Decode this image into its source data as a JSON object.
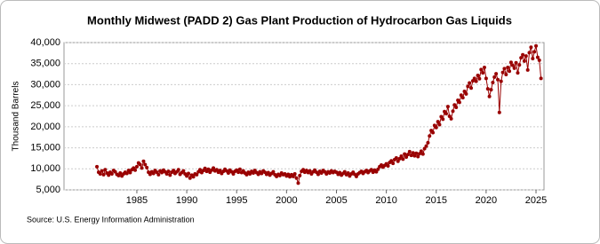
{
  "chart_data": {
    "type": "line",
    "title": "Monthly Midwest (PADD 2) Gas Plant Production of Hydrocarbon Gas Liquids",
    "y_label": "Thousand Barrels",
    "source": "Source: U.S. Energy Information Administration",
    "xlim": [
      1977.7,
      2025.8
    ],
    "ylim": [
      5000,
      40000
    ],
    "xticks": [
      1985,
      1990,
      1995,
      2000,
      2005,
      2010,
      2015,
      2020,
      2025
    ],
    "yticks": [
      {
        "value": 5000,
        "label": "5,000"
      },
      {
        "value": 10000,
        "label": "10,000"
      },
      {
        "value": 15000,
        "label": "15,000"
      },
      {
        "value": 20000,
        "label": "20,000"
      },
      {
        "value": 25000,
        "label": "25,000"
      },
      {
        "value": 30000,
        "label": "30,000"
      },
      {
        "value": 35000,
        "label": "35,000"
      },
      {
        "value": 40000,
        "label": "40,000"
      }
    ],
    "grid": true,
    "x": [
      1981,
      1981.17,
      1981.33,
      1981.5,
      1981.67,
      1981.83,
      1982,
      1982.17,
      1982.33,
      1982.5,
      1982.67,
      1982.83,
      1983,
      1983.17,
      1983.33,
      1983.5,
      1983.67,
      1983.83,
      1984,
      1984.17,
      1984.33,
      1984.5,
      1984.67,
      1984.83,
      1985,
      1985.17,
      1985.33,
      1985.5,
      1985.67,
      1985.83,
      1986,
      1986.17,
      1986.33,
      1986.5,
      1986.67,
      1986.83,
      1987,
      1987.17,
      1987.33,
      1987.5,
      1987.67,
      1987.83,
      1988,
      1988.17,
      1988.33,
      1988.5,
      1988.67,
      1988.83,
      1989,
      1989.17,
      1989.33,
      1989.5,
      1989.67,
      1989.83,
      1990,
      1990.17,
      1990.33,
      1990.5,
      1990.67,
      1990.83,
      1991,
      1991.17,
      1991.33,
      1991.5,
      1991.67,
      1991.83,
      1992,
      1992.17,
      1992.33,
      1992.5,
      1992.67,
      1992.83,
      1993,
      1993.17,
      1993.33,
      1993.5,
      1993.67,
      1993.83,
      1994,
      1994.17,
      1994.33,
      1994.5,
      1994.67,
      1994.83,
      1995,
      1995.17,
      1995.33,
      1995.5,
      1995.67,
      1995.83,
      1996,
      1996.17,
      1996.33,
      1996.5,
      1996.67,
      1996.83,
      1997,
      1997.17,
      1997.33,
      1997.5,
      1997.67,
      1997.83,
      1998,
      1998.17,
      1998.33,
      1998.5,
      1998.67,
      1998.83,
      1999,
      1999.17,
      1999.33,
      1999.5,
      1999.67,
      1999.83,
      2000,
      2000.17,
      2000.33,
      2000.5,
      2000.67,
      2000.83,
      2001,
      2001.17,
      2001.33,
      2001.5,
      2001.67,
      2001.83,
      2002,
      2002.17,
      2002.33,
      2002.5,
      2002.67,
      2002.83,
      2003,
      2003.17,
      2003.33,
      2003.5,
      2003.67,
      2003.83,
      2004,
      2004.17,
      2004.33,
      2004.5,
      2004.67,
      2004.83,
      2005,
      2005.17,
      2005.33,
      2005.5,
      2005.67,
      2005.83,
      2006,
      2006.17,
      2006.33,
      2006.5,
      2006.67,
      2006.83,
      2007,
      2007.17,
      2007.33,
      2007.5,
      2007.67,
      2007.83,
      2008,
      2008.17,
      2008.33,
      2008.5,
      2008.67,
      2008.83,
      2009,
      2009.17,
      2009.33,
      2009.5,
      2009.67,
      2009.83,
      2010,
      2010.17,
      2010.33,
      2010.5,
      2010.67,
      2010.83,
      2011,
      2011.17,
      2011.33,
      2011.5,
      2011.67,
      2011.83,
      2012,
      2012.17,
      2012.33,
      2012.5,
      2012.67,
      2012.83,
      2013,
      2013.17,
      2013.33,
      2013.5,
      2013.67,
      2013.83,
      2014,
      2014.17,
      2014.33,
      2014.5,
      2014.67,
      2014.83,
      2015,
      2015.17,
      2015.33,
      2015.5,
      2015.67,
      2015.83,
      2016,
      2016.17,
      2016.33,
      2016.5,
      2016.67,
      2016.83,
      2017,
      2017.17,
      2017.33,
      2017.5,
      2017.67,
      2017.83,
      2018,
      2018.17,
      2018.33,
      2018.5,
      2018.67,
      2018.83,
      2019,
      2019.17,
      2019.33,
      2019.5,
      2019.67,
      2019.83,
      2020,
      2020.17,
      2020.33,
      2020.5,
      2020.67,
      2020.83,
      2021,
      2021.17,
      2021.33,
      2021.5,
      2021.67,
      2021.83,
      2022,
      2022.17,
      2022.33,
      2022.5,
      2022.67,
      2022.83,
      2023,
      2023.17,
      2023.33,
      2023.5,
      2023.67,
      2023.83,
      2024,
      2024.17,
      2024.33,
      2024.5,
      2024.67,
      2024.83,
      2025,
      2025.17,
      2025.33,
      2025.5
    ],
    "series": [
      {
        "color": "#990000",
        "values": [
          10500,
          9200,
          8800,
          9500,
          8600,
          9800,
          9000,
          8500,
          9200,
          8800,
          9600,
          9300,
          8700,
          8400,
          9000,
          8300,
          8800,
          9200,
          8900,
          9600,
          9100,
          9800,
          10200,
          9700,
          10500,
          11400,
          11000,
          10200,
          11800,
          11000,
          10300,
          9200,
          8700,
          9300,
          8900,
          9600,
          9200,
          8600,
          9500,
          9100,
          9700,
          9300,
          8800,
          9400,
          8500,
          9200,
          9600,
          8900,
          9300,
          9800,
          8700,
          9100,
          9500,
          8800,
          8300,
          8900,
          7800,
          8500,
          8100,
          8800,
          8600,
          9300,
          9800,
          9100,
          9600,
          10100,
          9400,
          9900,
          9200,
          9700,
          10200,
          9500,
          9800,
          9200,
          9600,
          8900,
          9400,
          9900,
          9500,
          9000,
          9700,
          9300,
          8800,
          9400,
          9700,
          9200,
          9900,
          9100,
          9500,
          9000,
          8600,
          9200,
          8800,
          9400,
          9000,
          9600,
          9100,
          8700,
          9300,
          8900,
          9500,
          9200,
          8700,
          9100,
          8500,
          8900,
          9300,
          8600,
          8200,
          8700,
          8400,
          9000,
          8600,
          8800,
          8300,
          8700,
          8100,
          8600,
          8200,
          8800,
          7800,
          6600,
          8400,
          9400,
          9800,
          9200,
          9600,
          9100,
          9500,
          8800,
          9300,
          9700,
          9200,
          8700,
          9400,
          9000,
          9600,
          9300,
          8800,
          9300,
          9000,
          9500,
          9100,
          9400,
          9200,
          8700,
          9100,
          8500,
          8900,
          9300,
          8600,
          9000,
          8300,
          8800,
          9200,
          8700,
          8200,
          8800,
          9100,
          9400,
          8900,
          9300,
          9600,
          9100,
          9500,
          9800,
          9200,
          9700,
          9300,
          9900,
          10500,
          10900,
          10400,
          10800,
          11200,
          10700,
          11500,
          11900,
          11300,
          12200,
          12600,
          11800,
          12400,
          13000,
          12300,
          13500,
          12800,
          13400,
          14100,
          13200,
          13800,
          13100,
          13700,
          12900,
          13600,
          14200,
          13500,
          14800,
          15400,
          16200,
          17800,
          19100,
          18600,
          20300,
          19800,
          21200,
          20500,
          22400,
          21800,
          23600,
          23100,
          24800,
          22500,
          21900,
          23700,
          25200,
          24600,
          26300,
          25800,
          27500,
          26900,
          28400,
          27800,
          29600,
          30400,
          29200,
          30900,
          31500,
          30800,
          32200,
          31400,
          33600,
          32800,
          34100,
          31500,
          29000,
          27200,
          28800,
          30500,
          31800,
          32600,
          31200,
          23400,
          30800,
          32900,
          33800,
          32400,
          34100,
          33200,
          35300,
          34600,
          33900,
          35200,
          32800,
          34700,
          36400,
          37100,
          35600,
          36800,
          33500,
          37600,
          38900,
          36200,
          37800,
          39200,
          36500,
          35800,
          31500
        ]
      }
    ]
  }
}
